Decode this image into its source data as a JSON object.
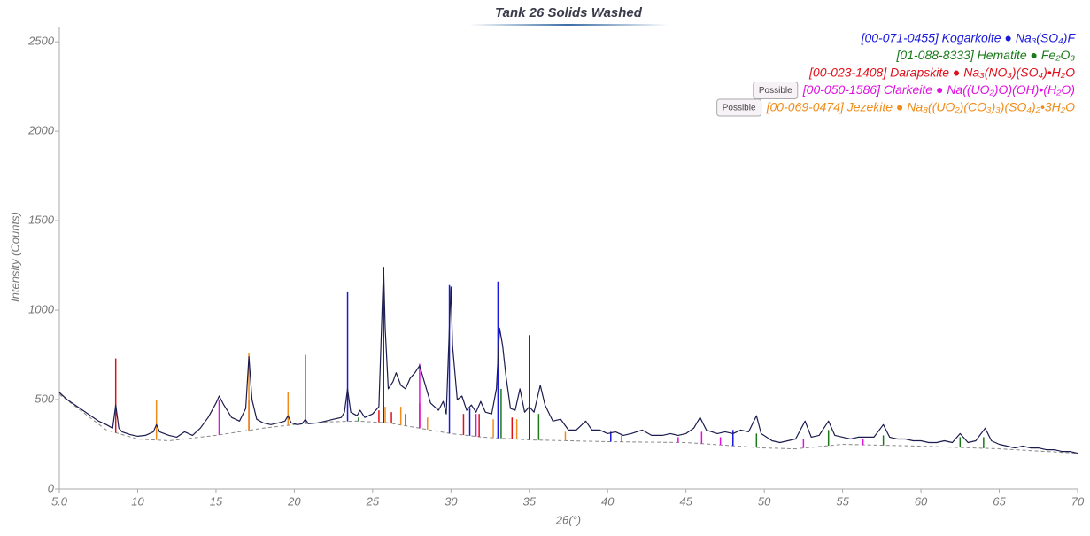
{
  "chart_data": {
    "type": "line",
    "title": "Tank 26 Solids Washed",
    "xlabel": "2θ(°)",
    "ylabel": "Intensity (Counts)",
    "xlim": [
      5,
      70
    ],
    "xticks": [
      {
        "value": 5,
        "label": "5.0"
      },
      10,
      15,
      20,
      25,
      30,
      35,
      40,
      45,
      50,
      55,
      60,
      65,
      70
    ],
    "ylim": [
      0,
      2580
    ],
    "yticks": [
      0,
      500,
      1000,
      1500,
      2000,
      2500
    ],
    "series": [
      {
        "name": "Tank 26 Solids Washed",
        "color": "#1c1c4e",
        "x": [
          5.0,
          5.5,
          6.0,
          6.5,
          7.0,
          7.5,
          8.0,
          8.4,
          8.6,
          8.8,
          9.0,
          9.5,
          10.0,
          10.5,
          11.0,
          11.2,
          11.4,
          12.0,
          12.5,
          13.0,
          13.5,
          14.0,
          14.5,
          15.0,
          15.2,
          15.5,
          16.0,
          16.5,
          16.9,
          17.1,
          17.3,
          17.6,
          18.0,
          18.5,
          19.0,
          19.4,
          19.6,
          19.8,
          20.2,
          20.5,
          20.7,
          20.9,
          21.5,
          22.0,
          22.5,
          23.0,
          23.2,
          23.4,
          23.6,
          24.0,
          24.2,
          24.5,
          25.0,
          25.4,
          25.6,
          25.7,
          25.8,
          26.0,
          26.3,
          26.5,
          26.8,
          27.1,
          27.4,
          27.7,
          28.0,
          28.3,
          28.7,
          29.2,
          29.5,
          29.7,
          29.9,
          30.0,
          30.1,
          30.4,
          30.7,
          31.0,
          31.3,
          31.6,
          31.9,
          32.2,
          32.6,
          32.9,
          33.1,
          33.3,
          33.5,
          33.8,
          34.1,
          34.4,
          34.7,
          35.0,
          35.3,
          35.7,
          36.0,
          36.5,
          37.0,
          37.5,
          38.0,
          38.6,
          39.0,
          39.5,
          40.0,
          40.5,
          41.0,
          41.5,
          42.2,
          42.8,
          43.5,
          44.0,
          44.5,
          45.0,
          45.5,
          45.9,
          46.3,
          47.0,
          47.5,
          48.0,
          48.5,
          49.0,
          49.5,
          49.8,
          50.5,
          51.0,
          51.5,
          52.0,
          52.6,
          53.0,
          53.5,
          54.1,
          54.5,
          55.0,
          55.5,
          56.0,
          56.5,
          57.0,
          57.6,
          58.0,
          58.5,
          59.0,
          59.5,
          60.0,
          60.5,
          61.0,
          61.5,
          62.0,
          62.5,
          63.0,
          63.5,
          64.1,
          64.5,
          65.0,
          65.5,
          66.0,
          66.5,
          67.0,
          67.5,
          68.0,
          68.5,
          69.0,
          69.5,
          70.0
        ],
        "values": [
          540,
          500,
          470,
          440,
          410,
          380,
          360,
          340,
          470,
          340,
          320,
          305,
          295,
          300,
          320,
          360,
          320,
          300,
          290,
          320,
          300,
          340,
          400,
          480,
          520,
          470,
          400,
          380,
          450,
          740,
          500,
          390,
          370,
          360,
          370,
          380,
          410,
          370,
          360,
          365,
          390,
          365,
          370,
          380,
          390,
          400,
          430,
          560,
          430,
          410,
          440,
          400,
          420,
          460,
          1000,
          1240,
          900,
          560,
          600,
          650,
          580,
          560,
          620,
          650,
          690,
          600,
          480,
          440,
          490,
          420,
          900,
          1130,
          800,
          500,
          520,
          440,
          470,
          430,
          490,
          430,
          420,
          560,
          900,
          800,
          640,
          450,
          440,
          560,
          430,
          460,
          430,
          580,
          470,
          380,
          390,
          330,
          330,
          380,
          330,
          330,
          310,
          320,
          300,
          310,
          330,
          300,
          300,
          310,
          300,
          310,
          340,
          400,
          330,
          310,
          320,
          310,
          330,
          320,
          410,
          310,
          270,
          260,
          270,
          280,
          380,
          290,
          300,
          380,
          300,
          290,
          280,
          290,
          290,
          290,
          360,
          290,
          280,
          280,
          270,
          270,
          260,
          260,
          270,
          260,
          310,
          260,
          270,
          340,
          270,
          250,
          240,
          230,
          240,
          230,
          230,
          220,
          220,
          210,
          210,
          200
        ]
      }
    ],
    "background": {
      "color": "#888888",
      "x": [
        5,
        8,
        10,
        12,
        15,
        18,
        20,
        22,
        24,
        26,
        28,
        30,
        32,
        35,
        40,
        45,
        50,
        52,
        55,
        60,
        65,
        70
      ],
      "values": [
        530,
        330,
        280,
        270,
        300,
        340,
        360,
        375,
        380,
        370,
        340,
        310,
        290,
        275,
        265,
        260,
        230,
        225,
        250,
        240,
        225,
        200
      ]
    },
    "phases": [
      {
        "name": "[00-071-0455] Kogarkoite ● Na₃(SO₄)F",
        "color": "#1a1adc",
        "x": [
          20.7,
          23.4,
          25.7,
          29.9,
          31.2,
          33.0,
          35.0,
          40.2,
          48.0
        ],
        "values": [
          750,
          1100,
          1240,
          1140,
          450,
          1160,
          860,
          320,
          330
        ]
      },
      {
        "name": "[01-088-8333] Hematite ● Fe₂O₃",
        "color": "#1a7a1a",
        "x": [
          24.1,
          33.2,
          35.6,
          40.9,
          49.5,
          54.1,
          57.6,
          62.5,
          64.0
        ],
        "values": [
          400,
          560,
          420,
          300,
          310,
          330,
          300,
          290,
          290
        ]
      },
      {
        "name": "[00-023-1408] Darapskite ● Na₃(NO₃)(SO₄)•H₂O",
        "color": "#e0101a",
        "x": [
          8.6,
          17.1,
          25.4,
          26.2,
          27.1,
          28.0,
          30.8,
          31.8,
          33.9
        ],
        "values": [
          730,
          500,
          440,
          430,
          420,
          480,
          420,
          420,
          400
        ]
      },
      {
        "name": "[00-050-1586] Clarkeite ● Na((UO₂)O)(OH)•(H₂O)",
        "color": "#e010e0",
        "badge": "Possible",
        "x": [
          15.2,
          28.0,
          31.6,
          44.5,
          46.0,
          47.2,
          52.5,
          56.3
        ],
        "values": [
          500,
          700,
          420,
          290,
          320,
          290,
          280,
          280
        ]
      },
      {
        "name": "[00-069-0474] Jezekite ● Na₈((UO₂)(CO₃)₃)(SO₄)₂•3H₂O",
        "color": "#f08c1a",
        "badge": "Possible",
        "x": [
          11.2,
          17.1,
          19.6,
          25.8,
          26.8,
          28.5,
          32.7,
          34.2,
          37.3
        ],
        "values": [
          500,
          760,
          540,
          460,
          460,
          400,
          390,
          390,
          320
        ]
      }
    ]
  }
}
